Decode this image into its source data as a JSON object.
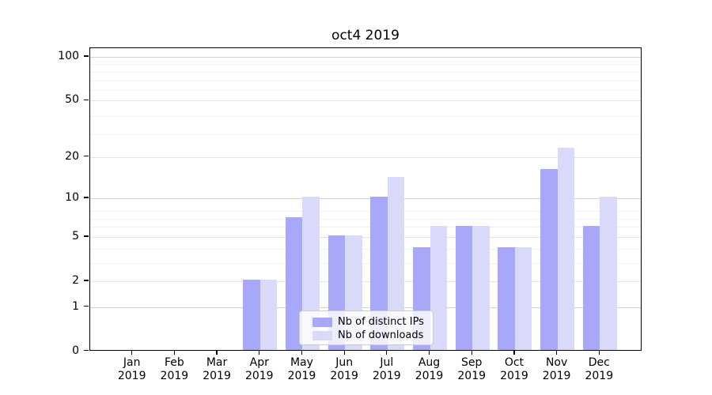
{
  "chart_data": {
    "type": "bar",
    "title": "oct4 2019",
    "categories": [
      "Jan 2019",
      "Feb 2019",
      "Mar 2019",
      "Apr 2019",
      "May 2019",
      "Jun 2019",
      "Jul 2019",
      "Aug 2019",
      "Sep 2019",
      "Oct 2019",
      "Nov 2019",
      "Dec 2019"
    ],
    "series": [
      {
        "name": "Nb of distinct IPs",
        "color": "#a8a8fa",
        "values": [
          0,
          0,
          0,
          2,
          7,
          5,
          10,
          4,
          6,
          4,
          16,
          6
        ]
      },
      {
        "name": "Nb of downloads",
        "color": "#d9d9fa",
        "values": [
          0,
          0,
          0,
          2,
          10,
          5,
          14,
          6,
          6,
          4,
          23,
          10
        ]
      }
    ],
    "y_scale": "log10(1+v)",
    "y_ticks": [
      100,
      50,
      20,
      10,
      5,
      2,
      1,
      0
    ],
    "y_tick_labels": [
      "100",
      "50",
      "20",
      "10",
      "5",
      "2",
      "1",
      "0"
    ],
    "emphasized_gridlines": [
      1,
      10,
      100
    ],
    "minor_gridlines": [
      3,
      4,
      6,
      7,
      8,
      29,
      39,
      59,
      69,
      79,
      89
    ],
    "ylim": [
      0,
      115
    ],
    "grid": "horizontal",
    "legend_position": "bottom-center-inside",
    "xlabel": "",
    "ylabel": ""
  },
  "colors": {
    "bar_dark": "#a8a8fa",
    "bar_light": "#d9d9fa",
    "grid_major": "#d2d2d2",
    "grid_tick": "#e5e5e5",
    "grid_minor": "#f0f0f0",
    "axis": "#000000",
    "legend_border": "#cccccc"
  }
}
